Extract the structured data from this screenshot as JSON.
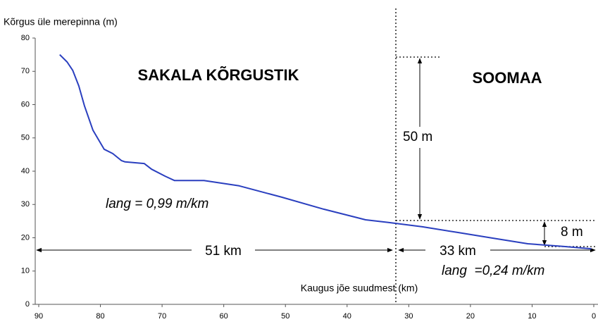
{
  "chart_data": {
    "type": "line",
    "y_label": "Kõrgus üle merepinna (m)",
    "x_label": "Kaugus jõe suudmest (km)",
    "annotations": [
      "SAKALA KÕRGUSTIK",
      "SOOMAA",
      "50 m",
      "8 m",
      "51 km",
      "33 km",
      "lang = 0,99 m/km",
      "lang  =0,24 m/km"
    ],
    "series": [
      {
        "color": "#2a3fbf",
        "x": [
          86.6,
          85.4,
          84.5,
          83.5,
          82.6,
          81.2,
          79.4,
          78.0,
          76.6,
          76.0,
          72.9,
          71.7,
          69.5,
          68.0,
          63.2,
          57.5,
          50.6,
          43.8,
          37.0,
          33.3,
          27.8,
          22.1,
          16.4,
          10.7,
          5.0,
          0.4
        ],
        "values": [
          75,
          72.8,
          70.3,
          65.6,
          59.7,
          52.3,
          46.6,
          45.3,
          43.2,
          42.8,
          42.3,
          40.6,
          38.5,
          37.2,
          37.2,
          35.6,
          32.2,
          28.6,
          25.4,
          24.6,
          23.3,
          21.6,
          19.9,
          18.2,
          17.4,
          16.7
        ]
      }
    ],
    "xlim": [
      90,
      0
    ],
    "xticks": [
      90,
      80,
      70,
      60,
      50,
      40,
      30,
      20,
      10,
      0
    ],
    "ylim": [
      0,
      80
    ],
    "yticks": [
      0,
      10,
      20,
      30,
      40,
      50,
      60,
      70,
      80
    ],
    "grid": false
  }
}
